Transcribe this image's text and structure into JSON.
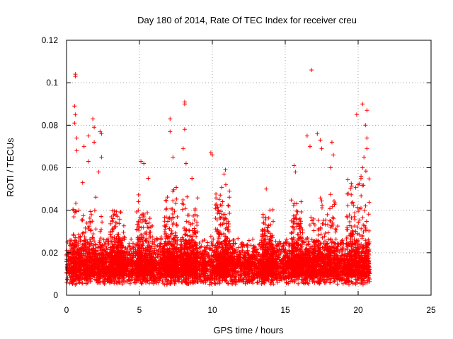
{
  "chart_data": {
    "type": "scatter",
    "title": "Day 180 of 2014, Rate Of TEC Index for receiver creu",
    "xlabel": "GPS time / hours",
    "ylabel": "ROTI / TECUs",
    "xlim": [
      0,
      25
    ],
    "ylim": [
      0,
      0.12
    ],
    "x_ticks": [
      0,
      5,
      10,
      15,
      20,
      25
    ],
    "x_tick_labels": [
      "0",
      "5",
      "10",
      "15",
      "20",
      "25"
    ],
    "y_ticks": [
      0,
      0.02,
      0.04,
      0.06,
      0.08,
      0.1,
      0.12
    ],
    "y_tick_labels": [
      "0",
      "0.02",
      "0.04",
      "0.06",
      "0.08",
      "0.1",
      "0.12"
    ],
    "grid": true,
    "marker": "+",
    "color": "#ff0000",
    "series": [
      {
        "name": "ROTI",
        "x_range_hours": [
          0,
          20.8
        ],
        "baseline_band": [
          0.005,
          0.025
        ],
        "outlier_points": [
          {
            "x": 0.6,
            "y": 0.104
          },
          {
            "x": 0.6,
            "y": 0.103
          },
          {
            "x": 0.55,
            "y": 0.089
          },
          {
            "x": 0.6,
            "y": 0.085
          },
          {
            "x": 0.55,
            "y": 0.081
          },
          {
            "x": 0.7,
            "y": 0.074
          },
          {
            "x": 0.7,
            "y": 0.068
          },
          {
            "x": 1.2,
            "y": 0.07
          },
          {
            "x": 1.5,
            "y": 0.075
          },
          {
            "x": 1.8,
            "y": 0.083
          },
          {
            "x": 1.9,
            "y": 0.079
          },
          {
            "x": 1.9,
            "y": 0.072
          },
          {
            "x": 2.3,
            "y": 0.077
          },
          {
            "x": 2.4,
            "y": 0.076
          },
          {
            "x": 2.4,
            "y": 0.065
          },
          {
            "x": 1.5,
            "y": 0.063
          },
          {
            "x": 2.2,
            "y": 0.058
          },
          {
            "x": 1.1,
            "y": 0.053
          },
          {
            "x": 5.1,
            "y": 0.063
          },
          {
            "x": 5.3,
            "y": 0.062
          },
          {
            "x": 5.6,
            "y": 0.055
          },
          {
            "x": 7.1,
            "y": 0.083
          },
          {
            "x": 7.1,
            "y": 0.077
          },
          {
            "x": 7.3,
            "y": 0.065
          },
          {
            "x": 8.1,
            "y": 0.091
          },
          {
            "x": 8.1,
            "y": 0.09
          },
          {
            "x": 8.1,
            "y": 0.078
          },
          {
            "x": 8.0,
            "y": 0.069
          },
          {
            "x": 8.2,
            "y": 0.062
          },
          {
            "x": 8.6,
            "y": 0.055
          },
          {
            "x": 9.9,
            "y": 0.067
          },
          {
            "x": 10.0,
            "y": 0.066
          },
          {
            "x": 10.9,
            "y": 0.059
          },
          {
            "x": 10.8,
            "y": 0.057
          },
          {
            "x": 13.7,
            "y": 0.05
          },
          {
            "x": 15.6,
            "y": 0.061
          },
          {
            "x": 15.7,
            "y": 0.058
          },
          {
            "x": 16.8,
            "y": 0.106
          },
          {
            "x": 16.5,
            "y": 0.075
          },
          {
            "x": 16.7,
            "y": 0.07
          },
          {
            "x": 17.2,
            "y": 0.076
          },
          {
            "x": 17.4,
            "y": 0.073
          },
          {
            "x": 17.5,
            "y": 0.069
          },
          {
            "x": 18.2,
            "y": 0.072
          },
          {
            "x": 18.3,
            "y": 0.066
          },
          {
            "x": 18.1,
            "y": 0.06
          },
          {
            "x": 19.9,
            "y": 0.085
          },
          {
            "x": 20.3,
            "y": 0.09
          },
          {
            "x": 20.6,
            "y": 0.087
          },
          {
            "x": 20.5,
            "y": 0.08
          },
          {
            "x": 20.6,
            "y": 0.074
          },
          {
            "x": 20.6,
            "y": 0.069
          },
          {
            "x": 20.4,
            "y": 0.065
          },
          {
            "x": 20.3,
            "y": 0.06
          },
          {
            "x": 20.2,
            "y": 0.056
          },
          {
            "x": 20.0,
            "y": 0.052
          }
        ],
        "activity_windows": [
          {
            "x_start": 0.4,
            "x_end": 2.6,
            "peak": 0.045
          },
          {
            "x_start": 3.0,
            "x_end": 4.0,
            "peak": 0.04
          },
          {
            "x_start": 4.8,
            "x_end": 5.9,
            "peak": 0.045
          },
          {
            "x_start": 6.7,
            "x_end": 7.6,
            "peak": 0.05
          },
          {
            "x_start": 7.9,
            "x_end": 9.0,
            "peak": 0.045
          },
          {
            "x_start": 10.2,
            "x_end": 11.2,
            "peak": 0.05
          },
          {
            "x_start": 13.4,
            "x_end": 14.2,
            "peak": 0.04
          },
          {
            "x_start": 15.4,
            "x_end": 16.2,
            "peak": 0.045
          },
          {
            "x_start": 16.4,
            "x_end": 18.6,
            "peak": 0.05
          },
          {
            "x_start": 19.2,
            "x_end": 20.8,
            "peak": 0.055
          }
        ]
      }
    ]
  }
}
